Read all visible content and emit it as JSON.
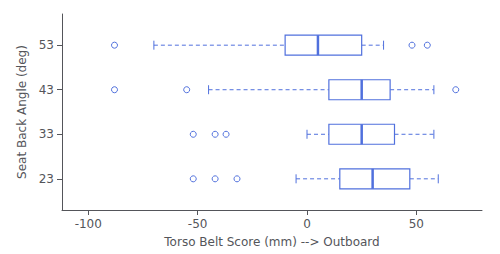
{
  "chart_data": {
    "type": "box",
    "orientation": "horizontal",
    "xlabel": "Torso Belt Score (mm) --> Outboard",
    "ylabel": "Seat Back Angle (deg)",
    "xlim": [
      -112,
      80
    ],
    "xticks": [
      -100,
      -50,
      0,
      50
    ],
    "ylim": [
      16,
      60
    ],
    "yticks": [
      23,
      33,
      43,
      53
    ],
    "grid": false,
    "boxes": [
      {
        "angle": 53,
        "q1": -10,
        "median": 5,
        "q3": 25,
        "whisker_low": -70,
        "whisker_high": 35,
        "outliers": [
          -88,
          48,
          55
        ]
      },
      {
        "angle": 43,
        "q1": 10,
        "median": 25,
        "q3": 38,
        "whisker_low": -45,
        "whisker_high": 58,
        "outliers": [
          -88,
          -55,
          68
        ]
      },
      {
        "angle": 33,
        "q1": 10,
        "median": 25,
        "q3": 40,
        "whisker_low": 0,
        "whisker_high": 58,
        "outliers": [
          -52,
          -42,
          -37
        ]
      },
      {
        "angle": 23,
        "q1": 15,
        "median": 30,
        "q3": 47,
        "whisker_low": -5,
        "whisker_high": 60,
        "outliers": [
          -52,
          -42,
          -32
        ]
      }
    ]
  }
}
